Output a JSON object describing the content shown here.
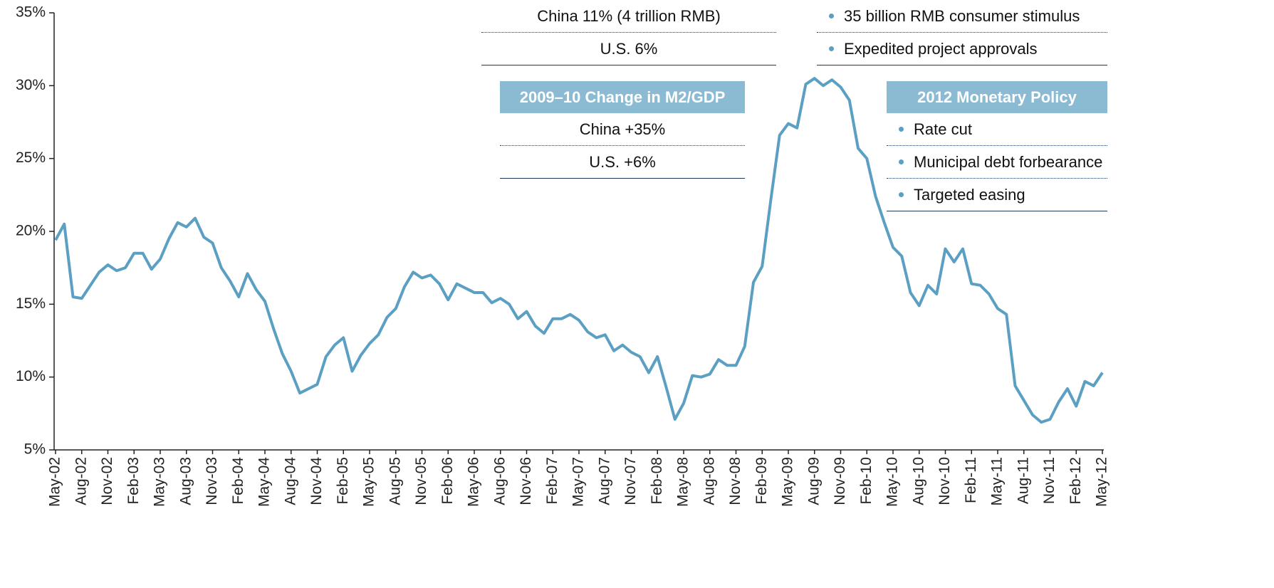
{
  "chart_data": {
    "type": "line",
    "categories": [
      "May-02",
      null,
      null,
      "Aug-02",
      null,
      null,
      "Nov-02",
      null,
      null,
      "Feb-03",
      null,
      null,
      "May-03",
      null,
      null,
      "Aug-03",
      null,
      null,
      "Nov-03",
      null,
      null,
      "Feb-04",
      null,
      null,
      "May-04",
      null,
      null,
      "Aug-04",
      null,
      null,
      "Nov-04",
      null,
      null,
      "Feb-05",
      null,
      null,
      "May-05",
      null,
      null,
      "Aug-05",
      null,
      null,
      "Nov-05",
      null,
      null,
      "Feb-06",
      null,
      null,
      "May-06",
      null,
      null,
      "Aug-06",
      null,
      null,
      "Nov-06",
      null,
      null,
      "Feb-07",
      null,
      null,
      "May-07",
      null,
      null,
      "Aug-07",
      null,
      null,
      "Nov-07",
      null,
      null,
      "Feb-08",
      null,
      null,
      "May-08",
      null,
      null,
      "Aug-08",
      null,
      null,
      "Nov-08",
      null,
      null,
      "Feb-09",
      null,
      null,
      "May-09",
      null,
      null,
      "Aug-09",
      null,
      null,
      "Nov-09",
      null,
      null,
      "Feb-10",
      null,
      null,
      "May-10",
      null,
      null,
      "Aug-10",
      null,
      null,
      "Nov-10",
      null,
      null,
      "Feb-11",
      null,
      null,
      "May-11",
      null,
      null,
      "Aug-11",
      null,
      null,
      "Nov-11",
      null,
      null,
      "Feb-12",
      null,
      null,
      "May-12"
    ],
    "series": [
      {
        "color": "#5b9fc3",
        "values": [
          19.4,
          20.5,
          15.5,
          15.4,
          16.3,
          17.2,
          17.7,
          17.3,
          17.5,
          18.5,
          18.5,
          17.4,
          18.1,
          19.5,
          20.6,
          20.3,
          20.9,
          19.6,
          19.2,
          17.5,
          16.6,
          15.5,
          17.1,
          16.0,
          15.2,
          13.3,
          11.6,
          10.4,
          8.9,
          9.2,
          9.5,
          11.4,
          12.2,
          12.7,
          10.4,
          11.5,
          12.3,
          12.9,
          14.1,
          14.7,
          16.2,
          17.2,
          16.8,
          17.0,
          16.4,
          15.3,
          16.4,
          16.1,
          15.8,
          15.8,
          15.1,
          15.4,
          15.0,
          14.0,
          14.5,
          13.5,
          13.0,
          14.0,
          14.0,
          14.3,
          13.9,
          13.1,
          12.7,
          12.9,
          11.8,
          12.2,
          11.7,
          11.4,
          10.3,
          11.4,
          9.3,
          7.1,
          8.2,
          10.1,
          10.0,
          10.2,
          11.2,
          10.8,
          10.8,
          12.1,
          16.5,
          17.6,
          22.2,
          26.6,
          27.4,
          27.1,
          30.1,
          30.5,
          30.0,
          30.4,
          29.9,
          29.0,
          25.7,
          25.0,
          22.4,
          20.6,
          18.9,
          18.3,
          15.8,
          14.9,
          16.3,
          15.7,
          18.8,
          17.9,
          18.8,
          16.4,
          16.3,
          15.7,
          14.7,
          14.3,
          9.4,
          8.4,
          7.4,
          6.9,
          7.1,
          8.3,
          9.2,
          8.0,
          9.7,
          9.4,
          10.3
        ]
      }
    ],
    "ylim": [
      5,
      35
    ],
    "yticks": [
      {
        "value": 5,
        "label": "5%"
      },
      {
        "value": 10,
        "label": "10%"
      },
      {
        "value": 15,
        "label": "15%"
      },
      {
        "value": 20,
        "label": "20%"
      },
      {
        "value": 25,
        "label": "25%"
      },
      {
        "value": 30,
        "label": "30%"
      },
      {
        "value": 35,
        "label": "35%"
      }
    ],
    "annotations": [
      {
        "rows": [
          "China 11% (4 trillion RMB)",
          "U.S. 6%"
        ]
      },
      {
        "title": "2009–10 Change in M2/GDP",
        "rows": [
          "China +35%",
          "U.S. +6%"
        ]
      },
      {
        "bullets": [
          "35 billion RMB consumer stimulus",
          "Expedited project approvals"
        ]
      },
      {
        "title": "2012 Monetary Policy",
        "bullets": [
          "Rate cut",
          "Municipal debt forbearance",
          "Targeted easing"
        ]
      }
    ]
  }
}
